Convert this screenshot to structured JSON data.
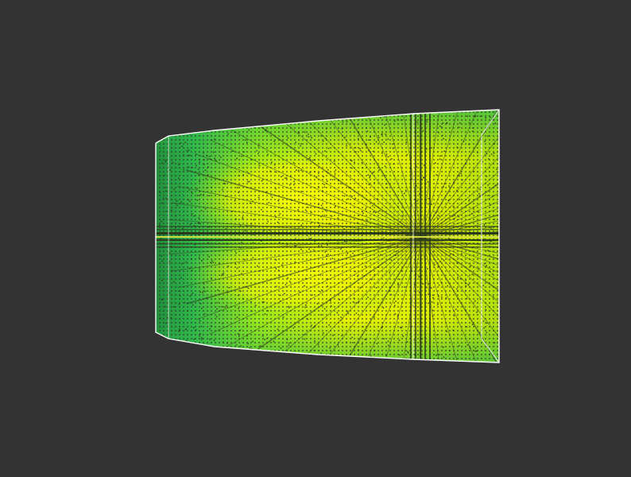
{
  "viewer": {
    "background_color": "#333333",
    "outline_color": "#ffffff",
    "colormap": [
      "#1f8a3a",
      "#2fb84a",
      "#7fe020",
      "#e6f000",
      "#ffff00"
    ],
    "streak_color": "#2a3a1a"
  }
}
